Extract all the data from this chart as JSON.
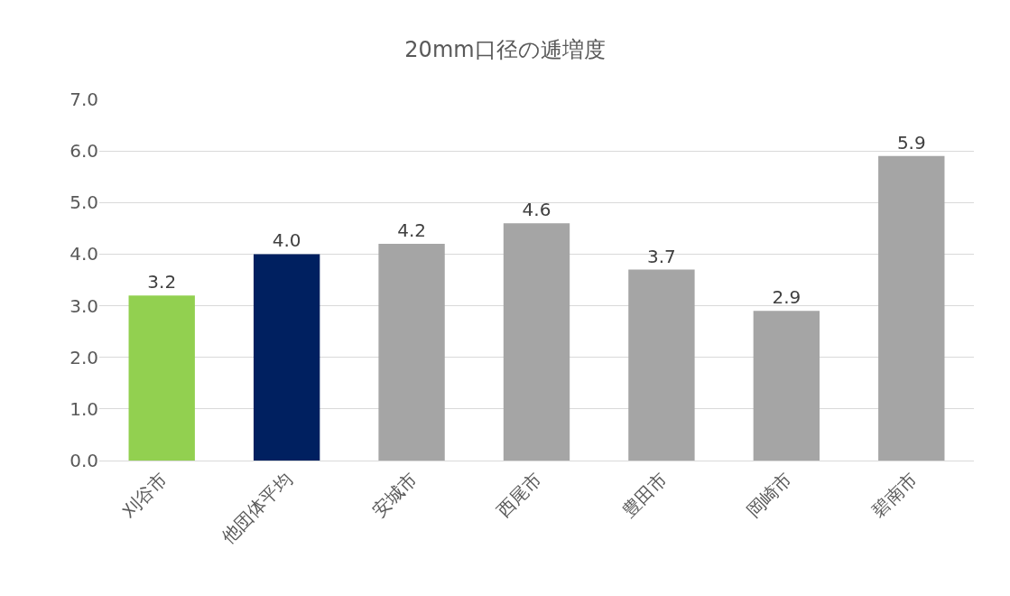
{
  "chart_data": {
    "type": "bar",
    "title": "20mm口径の逓増度",
    "categories": [
      "刈谷市",
      "他団体平均",
      "安城市",
      "西尾市",
      "豊田市",
      "岡崎市",
      "碧南市"
    ],
    "values": [
      3.2,
      4.0,
      4.2,
      4.6,
      3.7,
      2.9,
      5.9
    ],
    "colors": [
      "#92d050",
      "#002060",
      "#a5a5a5",
      "#a5a5a5",
      "#a5a5a5",
      "#a5a5a5",
      "#a5a5a5"
    ],
    "value_labels": [
      "3.2",
      "4.0",
      "4.2",
      "4.6",
      "3.7",
      "2.9",
      "5.9"
    ],
    "ylim": [
      0,
      7
    ],
    "yticks": [
      {
        "value": 0,
        "label": "0.0"
      },
      {
        "value": 1,
        "label": "1.0"
      },
      {
        "value": 2,
        "label": "2.0"
      },
      {
        "value": 3,
        "label": "3.0"
      },
      {
        "value": 4,
        "label": "4.0"
      },
      {
        "value": 5,
        "label": "5.0"
      },
      {
        "value": 6,
        "label": "6.0"
      },
      {
        "value": 7,
        "label": "7.0"
      }
    ],
    "grid": "y"
  }
}
